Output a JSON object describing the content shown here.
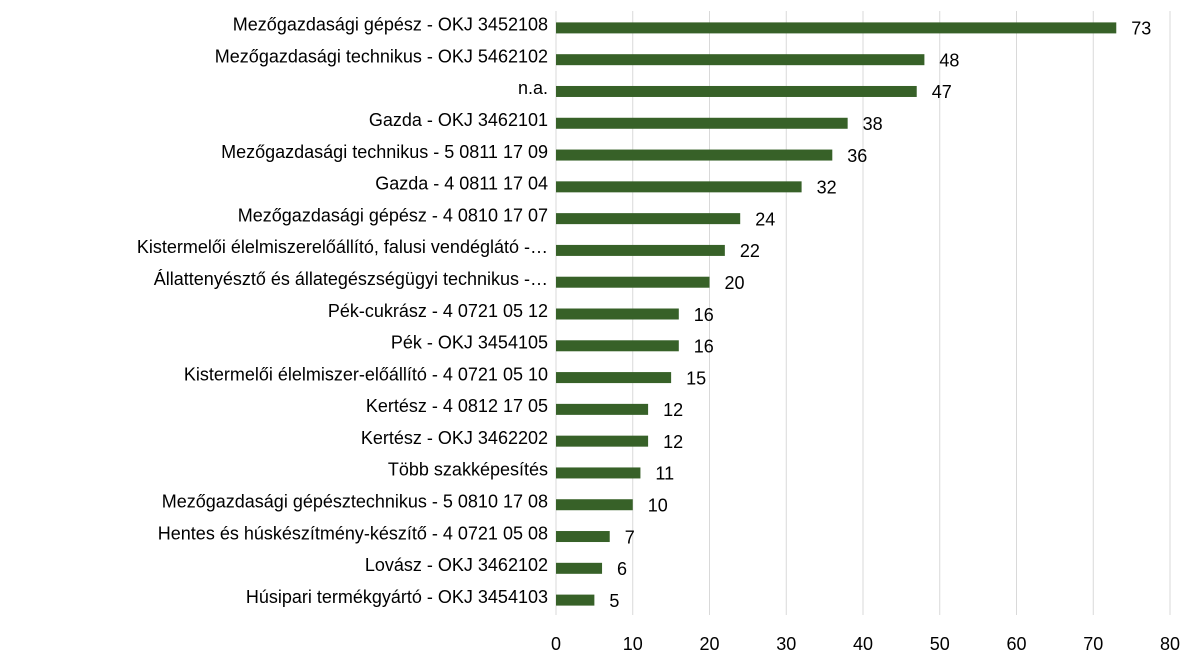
{
  "chart_data": {
    "type": "bar",
    "orientation": "horizontal",
    "categories": [
      "Mezőgazdasági gépész - OKJ 3452108",
      "Mezőgazdasági technikus - OKJ 5462102",
      "n.a.",
      "Gazda - OKJ 3462101",
      "Mezőgazdasági technikus - 5 0811 17 09",
      "Gazda - 4 0811 17 04",
      "Mezőgazdasági gépész - 4 0810 17 07",
      "Kistermelői élelmiszerelőállító, falusi vendéglátó -…",
      "Állattenyésztő és állategészségügyi technikus -…",
      "Pék-cukrász - 4 0721 05 12",
      "Pék - OKJ 3454105",
      "Kistermelői élelmiszer-előállító - 4 0721 05 10",
      "Kertész - 4 0812 17 05",
      "Kertész - OKJ 3462202",
      "Több szakképesítés",
      "Mezőgazdasági gépésztechnikus - 5 0810 17 08",
      "Hentes és húskészítmény-készítő - 4 0721 05 08",
      "Lovász - OKJ 3462102",
      "Húsipari termékgyártó - OKJ 3454103"
    ],
    "values": [
      73,
      48,
      47,
      38,
      36,
      32,
      24,
      22,
      20,
      16,
      16,
      15,
      12,
      12,
      11,
      10,
      7,
      6,
      5
    ],
    "color": "#376128",
    "xlim": [
      0,
      80
    ],
    "xticks": [
      0,
      10,
      20,
      30,
      40,
      50,
      60,
      70,
      80
    ],
    "grid": true
  }
}
